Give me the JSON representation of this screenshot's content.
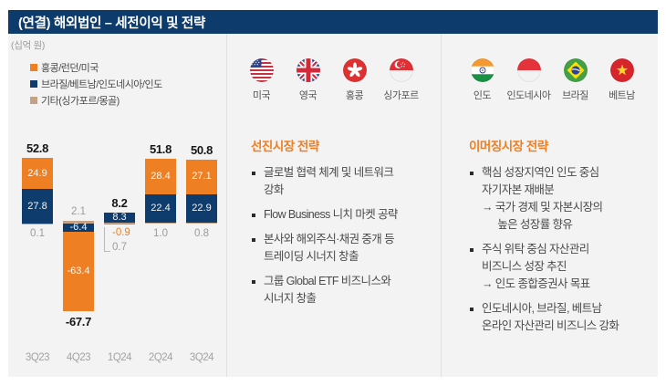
{
  "header": {
    "title": "(연결) 해외법인 – 세전이익 및 전략"
  },
  "chart": {
    "unit_label": "(십억 원)",
    "colors": {
      "orange": "#EE7F22",
      "navy": "#0E3D6D",
      "tan": "#C4A285"
    },
    "legend": [
      {
        "label": "홍콩/런던/미국",
        "color": "#EE7F22"
      },
      {
        "label": "브라질/베트남/인도네시아/인도",
        "color": "#0E3D6D"
      },
      {
        "label": "기타(싱가포르/몽골)",
        "color": "#C4A285"
      }
    ],
    "chart_data": {
      "type": "stacked-bar",
      "title": "",
      "ylabel": "(십억 원)",
      "categories": [
        "3Q23",
        "4Q23",
        "1Q24",
        "2Q24",
        "3Q24"
      ],
      "series": [
        {
          "name": "홍콩/런던/미국",
          "color_key": "orange",
          "values": [
            24.9,
            -63.4,
            -0.9,
            28.4,
            27.1
          ]
        },
        {
          "name": "브라질/베트남/인도네시아/인도",
          "color_key": "navy",
          "values": [
            27.8,
            -6.4,
            8.3,
            22.4,
            22.9
          ]
        },
        {
          "name": "기타(싱가포르/몽골)",
          "color_key": "tan",
          "values": [
            0.1,
            2.1,
            0.7,
            1.0,
            0.8
          ]
        }
      ],
      "totals": [
        52.8,
        -67.7,
        8.2,
        51.8,
        50.8
      ],
      "bars": [
        {
          "quarter": "3Q23",
          "total": "52.8",
          "total_pos": "above",
          "below_note": "0.1",
          "segments": [
            {
              "v": 24.9,
              "c": "orange",
              "label": "24.9"
            },
            {
              "v": 27.8,
              "c": "navy",
              "label": "27.8"
            },
            {
              "v": 0.1,
              "c": "tan"
            }
          ]
        },
        {
          "quarter": "4Q23",
          "total": "-67.7",
          "total_pos": "below",
          "above_note": "2.1",
          "segments": [
            {
              "v": 2.1,
              "c": "tan"
            },
            {
              "v": -6.4,
              "c": "navy",
              "label": "-6.4"
            },
            {
              "v": -63.4,
              "c": "orange",
              "label": "-63.4"
            }
          ]
        },
        {
          "quarter": "1Q24",
          "total": "8.2",
          "total_pos": "above",
          "segments": [
            {
              "v": 8.3,
              "c": "navy",
              "label": "8.3"
            },
            {
              "v": 0.7,
              "c": "tan"
            },
            {
              "v": -0.9,
              "c": "orange"
            }
          ],
          "bracket": {
            "labels": [
              {
                "text": "-0.9",
                "color": "orange"
              },
              {
                "text": "0.7",
                "color": "gray"
              }
            ]
          }
        },
        {
          "quarter": "2Q24",
          "total": "51.8",
          "total_pos": "above",
          "below_note": "1.0",
          "segments": [
            {
              "v": 28.4,
              "c": "orange",
              "label": "28.4"
            },
            {
              "v": 22.4,
              "c": "navy",
              "label": "22.4"
            },
            {
              "v": 1.0,
              "c": "tan"
            }
          ]
        },
        {
          "quarter": "3Q24",
          "total": "50.8",
          "total_pos": "above",
          "below_note": "0.8",
          "segments": [
            {
              "v": 27.1,
              "c": "orange",
              "label": "27.1"
            },
            {
              "v": 22.9,
              "c": "navy",
              "label": "22.9"
            },
            {
              "v": 0.8,
              "c": "tan"
            }
          ]
        }
      ]
    }
  },
  "developed": {
    "flags": [
      {
        "name": "us",
        "label": "미국"
      },
      {
        "name": "uk",
        "label": "영국"
      },
      {
        "name": "hk",
        "label": "홍콩"
      },
      {
        "name": "sg",
        "label": "싱가포르"
      }
    ],
    "heading": "선진시장 전략",
    "bullets": [
      "글로벌 협력 체계 및 네트워크\n강화",
      "Flow Business 니치 마켓 공략",
      "본사와 해외주식·채권 중개 등\n트레이딩 시너지 창출",
      "그룹 Global ETF 비즈니스와\n시너지 창출"
    ]
  },
  "emerging": {
    "flags": [
      {
        "name": "india",
        "label": "인도"
      },
      {
        "name": "indonesia",
        "label": "인도네시아"
      },
      {
        "name": "brazil",
        "label": "브라질"
      },
      {
        "name": "vietnam",
        "label": "베트남"
      }
    ],
    "heading": "이머징시장 전략",
    "bullets": [
      "핵심 성장지역인 인도 중심\n자기자본 재배분\n→ 국가 경제 및 자본시장의\n      높은 성장률 향유",
      "주식 위탁 중심 자산관리\n비즈니스 성장 추진\n→ 인도 종합증권사 목표",
      "인도네시아, 브라질, 베트남\n온라인 자산관리 비즈니스 강화"
    ]
  }
}
